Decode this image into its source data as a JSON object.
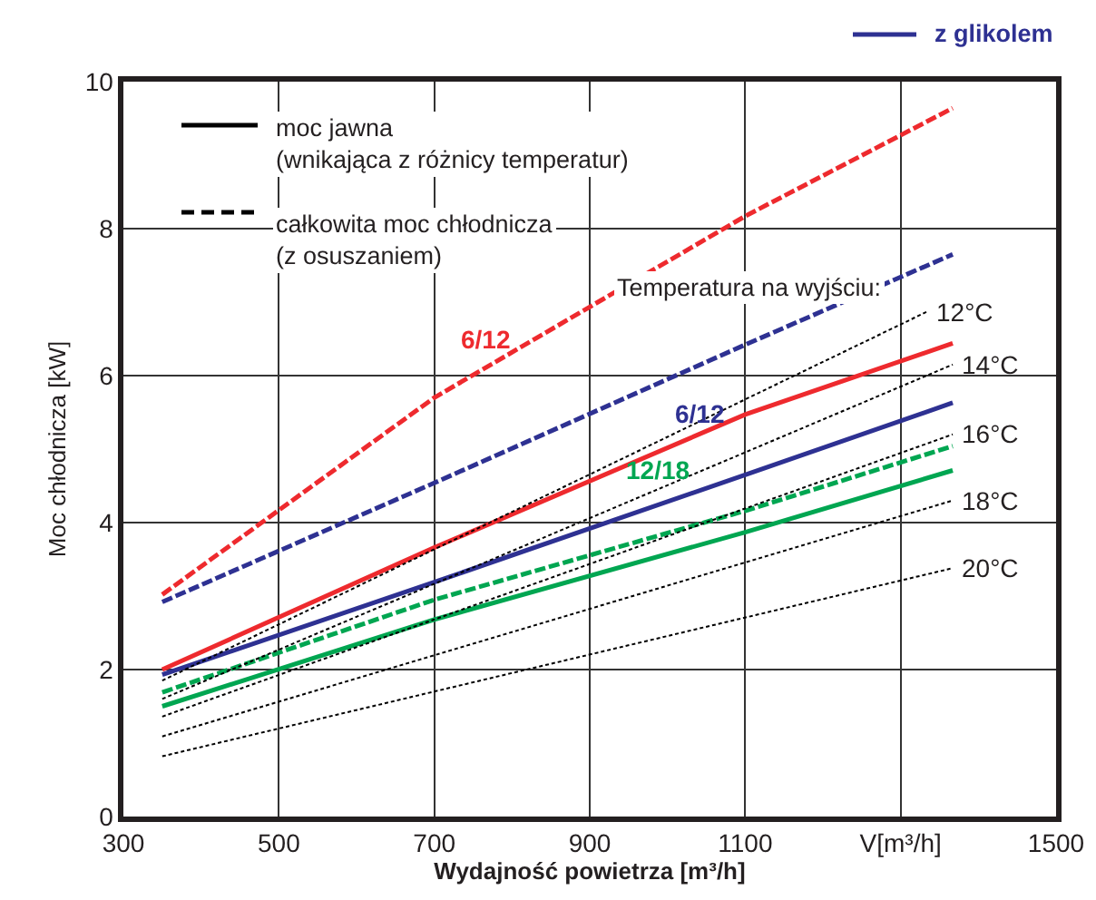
{
  "chart_data": {
    "type": "line",
    "xlabel": "Wydajność powietrza [m³/h]",
    "ylabel": "Moc chłodnicza [kW]",
    "xlim": [
      300,
      1500
    ],
    "xticks": [
      300,
      500,
      700,
      900,
      1100,
      {
        "value": 1300,
        "label": "V[m³/h]"
      },
      1500
    ],
    "ylim": [
      0,
      10
    ],
    "yticks": [
      0,
      2,
      4,
      6,
      8,
      10
    ],
    "grid": true,
    "legend": false,
    "marker": "none",
    "annotations": [
      "moc jawna\n(wnikająca z różnicy temperatur)",
      "całkowita moc chłodnicza\n(z osuszaniem)",
      "Temperatura na wyjściu:",
      "z glikolem"
    ],
    "series": [
      {
        "name": "6/12",
        "color": "#ee2a2e",
        "line_style": "dashed",
        "x": [
          350,
          700,
          1100,
          1367
        ],
        "values": [
          3.02,
          5.7,
          8.17,
          9.64
        ]
      },
      {
        "color": "#ee2a2e",
        "line_style": "solid",
        "x": [
          350,
          700,
          1100,
          1367
        ],
        "values": [
          2.0,
          3.66,
          5.47,
          6.44
        ]
      },
      {
        "name": "6/12",
        "color": "#2e3192",
        "line_style": "dashed",
        "x": [
          350,
          700,
          1100,
          1367
        ],
        "values": [
          2.92,
          4.54,
          6.42,
          7.65
        ]
      },
      {
        "color": "#2e3192",
        "line_style": "solid",
        "x": [
          350,
          700,
          1100,
          1367
        ],
        "values": [
          1.93,
          3.19,
          4.65,
          5.63
        ]
      },
      {
        "color": "#00a651",
        "line_style": "dashed",
        "x": [
          350,
          700,
          1100,
          1367
        ],
        "values": [
          1.69,
          2.95,
          4.16,
          5.04
        ]
      },
      {
        "name": "12/18",
        "color": "#00a651",
        "line_style": "solid",
        "x": [
          350,
          700,
          1100,
          1367
        ],
        "values": [
          1.5,
          2.68,
          3.87,
          4.71
        ]
      },
      {
        "name": "12°C",
        "color": "#000000",
        "line_style": "dotted",
        "x": [
          350,
          1334
        ],
        "values": [
          1.85,
          6.87
        ]
      },
      {
        "name": "14°C",
        "color": "#000000",
        "line_style": "dotted",
        "x": [
          350,
          1367
        ],
        "values": [
          1.6,
          6.15
        ]
      },
      {
        "name": "16°C",
        "color": "#000000",
        "line_style": "dotted",
        "x": [
          350,
          1367
        ],
        "values": [
          1.36,
          5.2
        ]
      },
      {
        "name": "18°C",
        "color": "#000000",
        "line_style": "dotted",
        "x": [
          350,
          1367
        ],
        "values": [
          1.09,
          4.3
        ]
      },
      {
        "name": "20°C",
        "color": "#000000",
        "line_style": "dotted",
        "x": [
          350,
          1367
        ],
        "values": [
          0.82,
          3.38
        ]
      }
    ]
  }
}
